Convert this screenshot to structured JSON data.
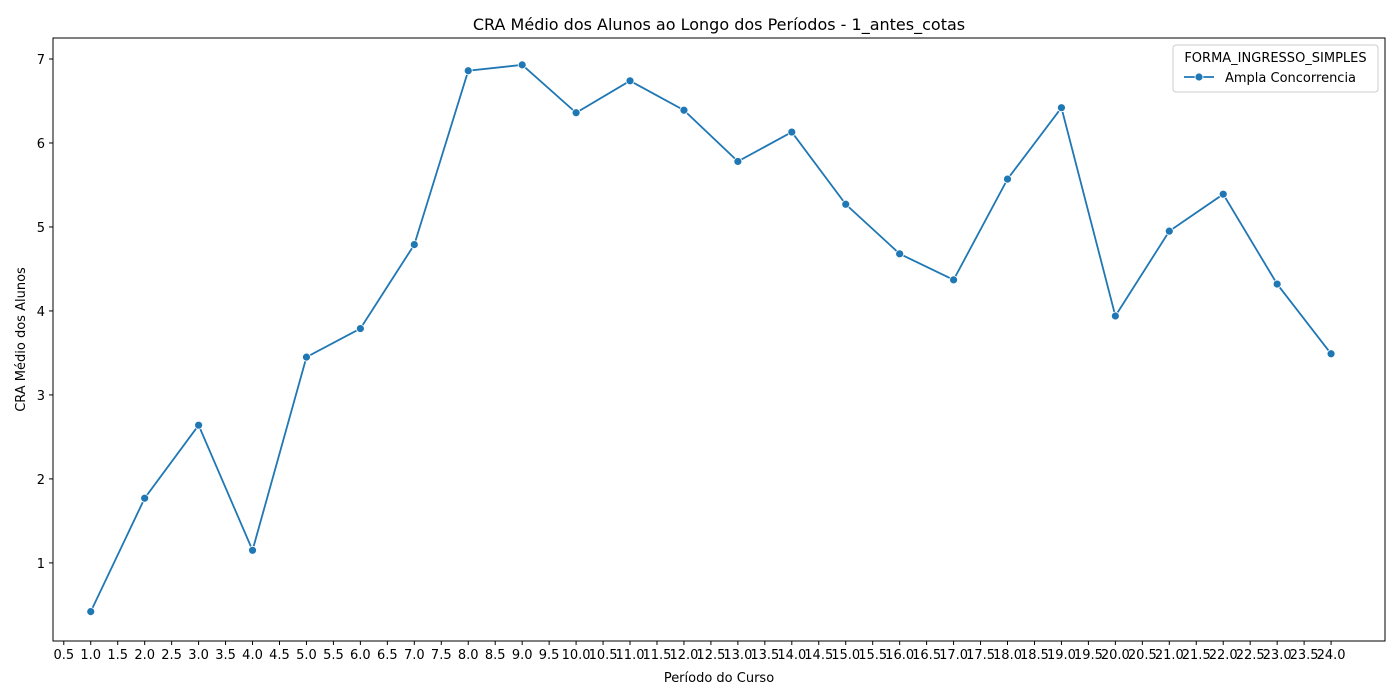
{
  "chart_data": {
    "type": "line",
    "title": "CRA Médio dos Alunos ao Longo dos Períodos - 1_antes_cotas",
    "xlabel": "Período do Curso",
    "ylabel": "CRA Médio dos Alunos",
    "xlim": [
      0.3,
      25.0
    ],
    "ylim": [
      0.07,
      7.25
    ],
    "x_ticks": [
      "0.5",
      "1.0",
      "1.5",
      "2.0",
      "2.5",
      "3.0",
      "3.5",
      "4.0",
      "4.5",
      "5.0",
      "5.5",
      "6.0",
      "6.5",
      "7.0",
      "7.5",
      "8.0",
      "8.5",
      "9.0",
      "9.5",
      "10.0",
      "10.5",
      "11.0",
      "11.5",
      "12.0",
      "12.5",
      "13.0",
      "13.5",
      "14.0",
      "14.5",
      "15.0",
      "15.5",
      "16.0",
      "16.5",
      "17.0",
      "17.5",
      "18.0",
      "18.5",
      "19.0",
      "19.5",
      "20.0",
      "20.5",
      "21.0",
      "21.5",
      "22.0",
      "22.5",
      "23.0",
      "23.5",
      "24.0"
    ],
    "y_ticks": [
      "1",
      "2",
      "3",
      "4",
      "5",
      "6",
      "7"
    ],
    "legend_title": "FORMA_INGRESSO_SIMPLES",
    "legend_position": "top-right",
    "grid": false,
    "series": [
      {
        "name": "Ampla Concorrencia",
        "color": "#1f77b4",
        "marker": "circle",
        "x": [
          1,
          2,
          3,
          4,
          5,
          6,
          7,
          8,
          9,
          10,
          11,
          12,
          13,
          14,
          15,
          16,
          17,
          18,
          19,
          20,
          21,
          22,
          23,
          24
        ],
        "values": [
          0.42,
          1.77,
          2.64,
          1.15,
          3.45,
          3.79,
          4.79,
          6.86,
          6.93,
          6.36,
          6.74,
          6.39,
          5.78,
          6.13,
          5.27,
          4.68,
          4.37,
          5.57,
          6.42,
          3.94,
          4.95,
          5.39,
          4.32,
          3.49
        ]
      }
    ]
  }
}
